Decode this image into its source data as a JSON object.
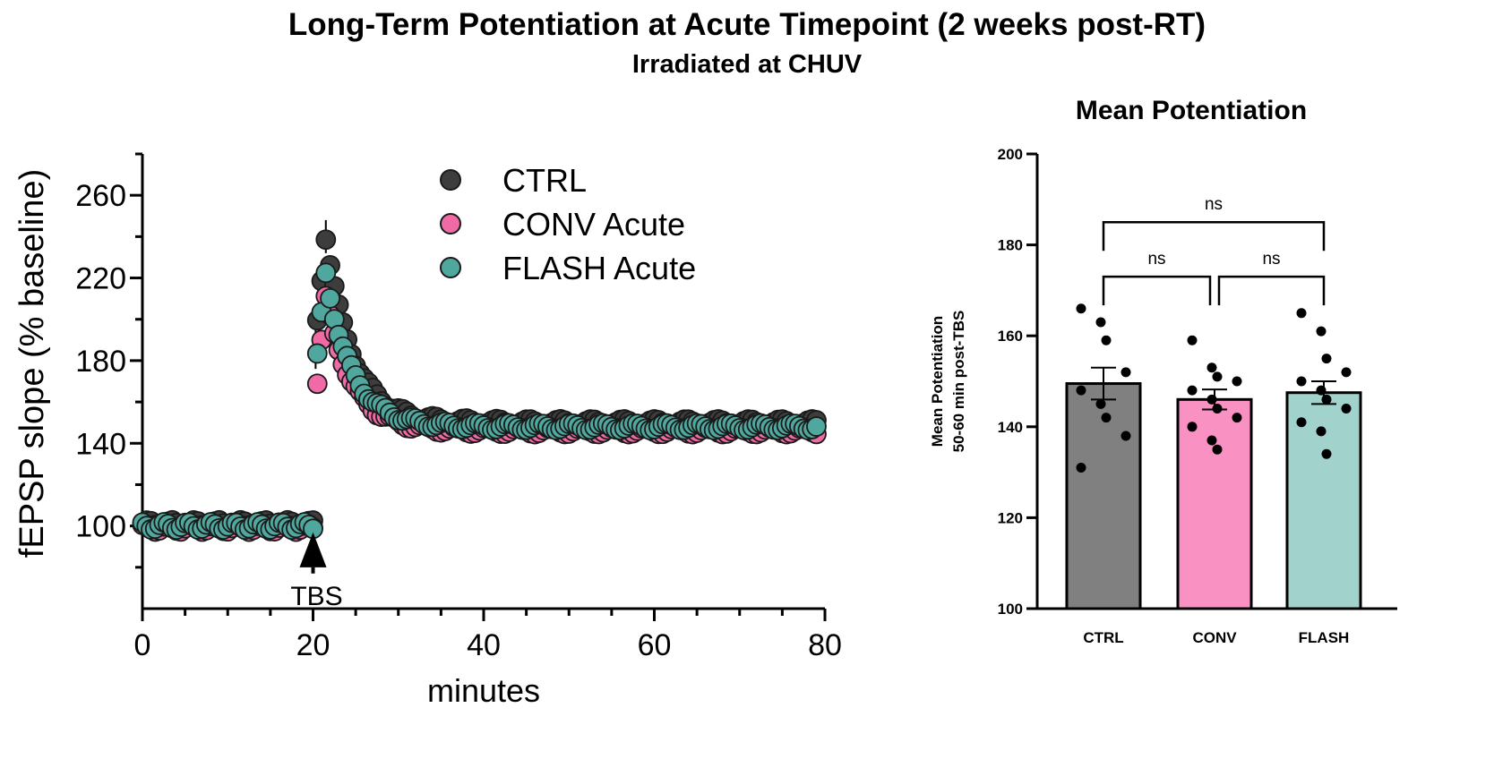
{
  "figure": {
    "title": "Long-Term Potentiation at Acute Timepoint (2 weeks post-RT)",
    "subtitle": "Irradiated at CHUV"
  },
  "colors": {
    "ctrl": "#3d3d3d",
    "conv": "#f06aa6",
    "flash": "#4fa79d",
    "ctrl_bar": "#808080",
    "conv_bar": "#f992c3",
    "flash_bar": "#a2d2cc"
  },
  "chart_data": [
    {
      "type": "scatter",
      "id": "time-course",
      "title": "",
      "xlabel": "minutes",
      "ylabel": "fEPSP slope (% baseline)",
      "xlim": [
        0,
        80
      ],
      "ylim": [
        60,
        280
      ],
      "xticks": [
        0,
        20,
        40,
        60,
        80
      ],
      "yticks": [
        100,
        140,
        180,
        220,
        260
      ],
      "legend": "top-center",
      "annotation": {
        "text": "TBS",
        "x": 20
      },
      "series": [
        {
          "name": "CTRL",
          "color_key": "ctrl",
          "baseline": 101,
          "peak": 240,
          "plateau": 150
        },
        {
          "name": "CONV Acute",
          "color_key": "conv",
          "baseline": 99,
          "peak": 210,
          "plateau": 146
        },
        {
          "name": "FLASH Acute",
          "color_key": "flash",
          "baseline": 100,
          "peak": 222,
          "plateau": 148
        }
      ]
    },
    {
      "type": "bar",
      "id": "mean-potentiation",
      "title": "Mean Potentiation",
      "ylabel_line1": "Mean Potentiation",
      "ylabel_line2": "50-60 min post-TBS",
      "ylim": [
        100,
        200
      ],
      "yticks": [
        100,
        120,
        140,
        160,
        180,
        200
      ],
      "categories": [
        "CTRL",
        "CONV",
        "FLASH"
      ],
      "values": [
        149.5,
        146,
        147.5
      ],
      "sem": [
        3.5,
        2.2,
        2.5
      ],
      "points": [
        [
          166,
          163,
          159,
          152,
          148,
          145,
          142,
          138,
          131
        ],
        [
          159,
          153,
          151,
          150,
          148,
          146,
          144,
          142,
          140,
          137,
          135
        ],
        [
          165,
          161,
          155,
          152,
          150,
          148,
          146,
          144,
          141,
          139,
          134
        ]
      ],
      "comparisons": [
        {
          "from": 0,
          "to": 1,
          "label": "ns"
        },
        {
          "from": 1,
          "to": 2,
          "label": "ns"
        },
        {
          "from": 0,
          "to": 2,
          "label": "ns"
        }
      ]
    }
  ]
}
